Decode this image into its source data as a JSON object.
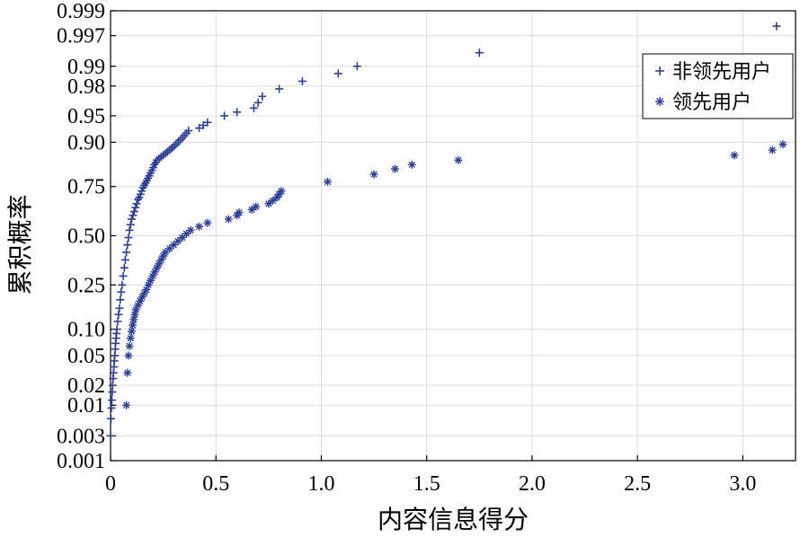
{
  "chart_data": {
    "type": "scatter",
    "title": "",
    "xlabel": "内容信息得分",
    "ylabel": "累积概率",
    "xlim": [
      0,
      3.25
    ],
    "x_ticks": [
      0,
      0.5,
      1.0,
      1.5,
      2.0,
      2.5,
      3.0
    ],
    "x_tick_labels": [
      "0",
      "0.5",
      "1.0",
      "1.5",
      "2.0",
      "2.5",
      "3.0"
    ],
    "y_scale": "normal-probability",
    "ylim": [
      0.001,
      0.999
    ],
    "y_ticks": [
      0.001,
      0.003,
      0.01,
      0.02,
      0.05,
      0.1,
      0.25,
      0.5,
      0.75,
      0.9,
      0.95,
      0.98,
      0.99,
      0.997,
      0.999
    ],
    "y_tick_labels": [
      "0.001",
      "0.003",
      "0.01",
      "0.02",
      "0.05",
      "0.10",
      "0.25",
      "0.50",
      "0.75",
      "0.90",
      "0.95",
      "0.98",
      "0.99",
      "0.997",
      "0.999"
    ],
    "grid": true,
    "legend": {
      "position": "top-right"
    },
    "series": [
      {
        "name": "非领先用户",
        "marker": "plus",
        "color": "#2e3f97",
        "x": [
          0,
          0.002,
          0.004,
          0.006,
          0.008,
          0.01,
          0.012,
          0.014,
          0.016,
          0.018,
          0.02,
          0.022,
          0.024,
          0.026,
          0.028,
          0.03,
          0.034,
          0.038,
          0.042,
          0.046,
          0.05,
          0.055,
          0.06,
          0.065,
          0.07,
          0.075,
          0.08,
          0.085,
          0.09,
          0.095,
          0.1,
          0.106,
          0.112,
          0.118,
          0.124,
          0.13,
          0.136,
          0.142,
          0.148,
          0.154,
          0.16,
          0.166,
          0.172,
          0.178,
          0.184,
          0.19,
          0.196,
          0.202,
          0.208,
          0.214,
          0.22,
          0.23,
          0.24,
          0.25,
          0.26,
          0.27,
          0.28,
          0.29,
          0.3,
          0.31,
          0.32,
          0.33,
          0.34,
          0.35,
          0.36,
          0.37,
          0.42,
          0.44,
          0.46,
          0.54,
          0.6,
          0.68,
          0.7,
          0.72,
          0.8,
          0.91,
          1.08,
          1.17,
          1.75,
          3.16
        ],
        "y": [
          0.003,
          0.006,
          0.009,
          0.012,
          0.016,
          0.02,
          0.025,
          0.03,
          0.036,
          0.043,
          0.05,
          0.06,
          0.07,
          0.08,
          0.09,
          0.1,
          0.12,
          0.14,
          0.16,
          0.19,
          0.22,
          0.25,
          0.29,
          0.33,
          0.37,
          0.41,
          0.45,
          0.49,
          0.53,
          0.56,
          0.59,
          0.61,
          0.63,
          0.65,
          0.67,
          0.69,
          0.7,
          0.715,
          0.73,
          0.745,
          0.755,
          0.765,
          0.775,
          0.785,
          0.795,
          0.805,
          0.815,
          0.825,
          0.835,
          0.842,
          0.85,
          0.855,
          0.86,
          0.865,
          0.87,
          0.875,
          0.88,
          0.885,
          0.89,
          0.895,
          0.9,
          0.905,
          0.91,
          0.915,
          0.92,
          0.925,
          0.93,
          0.935,
          0.94,
          0.95,
          0.955,
          0.96,
          0.966,
          0.972,
          0.978,
          0.983,
          0.987,
          0.99,
          0.994,
          0.998
        ]
      },
      {
        "name": "领先用户",
        "marker": "star",
        "color": "#2e3f97",
        "x": [
          0.075,
          0.08,
          0.085,
          0.09,
          0.095,
          0.1,
          0.105,
          0.11,
          0.115,
          0.12,
          0.13,
          0.14,
          0.15,
          0.16,
          0.17,
          0.18,
          0.19,
          0.2,
          0.21,
          0.22,
          0.23,
          0.24,
          0.25,
          0.26,
          0.28,
          0.3,
          0.32,
          0.34,
          0.36,
          0.38,
          0.42,
          0.46,
          0.56,
          0.6,
          0.61,
          0.67,
          0.69,
          0.75,
          0.77,
          0.79,
          0.8,
          0.81,
          1.03,
          1.25,
          1.35,
          1.43,
          1.65,
          2.96,
          3.14,
          3.19
        ],
        "y": [
          0.01,
          0.03,
          0.05,
          0.065,
          0.08,
          0.095,
          0.11,
          0.125,
          0.14,
          0.155,
          0.17,
          0.185,
          0.2,
          0.215,
          0.23,
          0.25,
          0.27,
          0.29,
          0.31,
          0.33,
          0.35,
          0.37,
          0.39,
          0.41,
          0.43,
          0.45,
          0.47,
          0.49,
          0.51,
          0.53,
          0.55,
          0.57,
          0.59,
          0.61,
          0.625,
          0.64,
          0.655,
          0.67,
          0.685,
          0.7,
          0.715,
          0.73,
          0.77,
          0.8,
          0.82,
          0.835,
          0.85,
          0.865,
          0.88,
          0.895
        ]
      }
    ]
  }
}
